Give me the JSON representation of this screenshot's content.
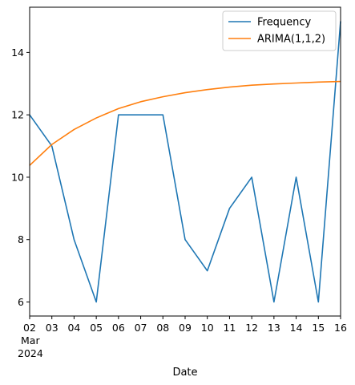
{
  "chart_data": {
    "type": "line",
    "title": "",
    "xlabel": "Date",
    "ylabel": "",
    "x": [
      "2024-03-02",
      "2024-03-03",
      "2024-03-04",
      "2024-03-05",
      "2024-03-06",
      "2024-03-07",
      "2024-03-08",
      "2024-03-09",
      "2024-03-10",
      "2024-03-11",
      "2024-03-12",
      "2024-03-13",
      "2024-03-14",
      "2024-03-15",
      "2024-03-16"
    ],
    "x_tick_labels": [
      "02",
      "03",
      "04",
      "05",
      "06",
      "07",
      "08",
      "09",
      "10",
      "11",
      "12",
      "13",
      "14",
      "15",
      "16"
    ],
    "x_tick_sublabel_month": "Mar",
    "x_tick_sublabel_year": "2024",
    "yticks": [
      6,
      8,
      10,
      12,
      14
    ],
    "ylim": [
      5.55,
      15.45
    ],
    "grid": false,
    "legend_position": "upper-right",
    "series": [
      {
        "name": "Frequency",
        "color": "#1f77b4",
        "values": [
          12,
          11,
          8,
          6,
          12,
          12,
          12,
          8,
          7,
          9,
          10,
          6,
          10,
          6,
          15
        ]
      },
      {
        "name": "ARIMA(1,1,2)",
        "color": "#ff7f0e",
        "values": [
          10.38,
          11.05,
          11.53,
          11.9,
          12.2,
          12.42,
          12.58,
          12.71,
          12.81,
          12.89,
          12.95,
          12.99,
          13.02,
          13.05,
          13.07
        ]
      }
    ]
  }
}
